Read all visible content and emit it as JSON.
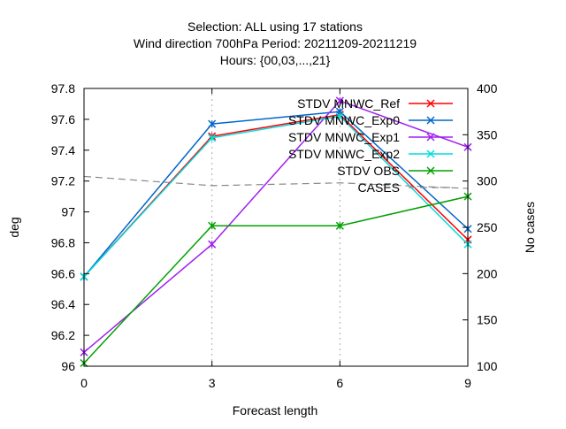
{
  "chart_data": {
    "type": "line",
    "title_lines": [
      "Selection: ALL using    17 stations",
      "Wind direction 700hPa   Period: 20211209-20211219",
      "Hours: {00,03,...,21}"
    ],
    "xlabel": "Forecast length",
    "ylabel": "deg",
    "y2label": "No cases",
    "x": [
      0,
      3,
      6,
      9
    ],
    "xlim": [
      0,
      9
    ],
    "ylim": [
      96.0,
      97.8
    ],
    "y2lim": [
      100,
      400
    ],
    "x_ticks": [
      "0",
      "3",
      "6",
      "9"
    ],
    "y_ticks": [
      "96",
      "96.2",
      "96.4",
      "96.6",
      "96.8",
      "97",
      "97.2",
      "97.4",
      "97.6",
      "97.8"
    ],
    "y2_ticks": [
      "100",
      "150",
      "200",
      "250",
      "300",
      "350",
      "400"
    ],
    "legend_position": "top-right",
    "series": [
      {
        "name": "STDV MNWC_Ref",
        "color": "#ff0000",
        "values": [
          96.58,
          97.49,
          97.63,
          96.82
        ]
      },
      {
        "name": "STDV MNWC_Exp0",
        "color": "#0066cc",
        "values": [
          96.58,
          97.57,
          97.65,
          96.89
        ]
      },
      {
        "name": "STDV MNWC_Exp1",
        "color": "#a020f0",
        "values": [
          96.09,
          96.79,
          97.72,
          97.42
        ]
      },
      {
        "name": "STDV MNWC_Exp2",
        "color": "#00dddd",
        "values": [
          96.58,
          97.48,
          97.62,
          96.79
        ]
      },
      {
        "name": "STDV OBS",
        "color": "#00a000",
        "values": [
          96.02,
          96.91,
          96.91,
          97.1
        ]
      }
    ],
    "cases": {
      "name": "CASES",
      "color": "#888888",
      "values": [
        305,
        295,
        298,
        292
      ]
    }
  }
}
